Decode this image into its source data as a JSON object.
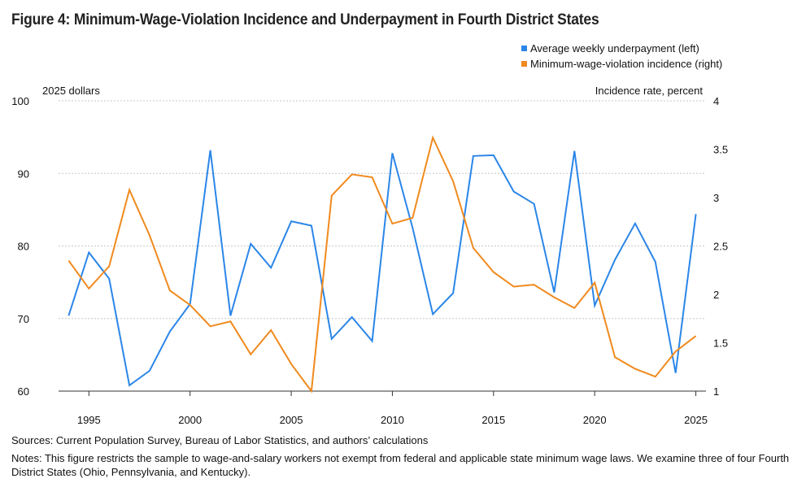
{
  "title": "Figure 4: Minimum-Wage-Violation Incidence and Underpayment in Fourth District States",
  "legend": [
    {
      "label": "Average weekly underpayment (left)",
      "color": "#2b86e8"
    },
    {
      "label": "Minimum-wage-violation incidence (right)",
      "color": "#f08a1e"
    }
  ],
  "left_axis_unit": "2025 dollars",
  "right_axis_unit": "Incidence rate, percent",
  "sources": "Sources: Current Population Survey, Bureau of Labor Statistics, and authors’ calculations",
  "notes": "Notes: This figure restricts the sample to wage-and-salary workers not exempt from federal and applicable state minimum wage laws. We examine three of four Fourth District States (Ohio, Pennsylvania, and Kentucky).",
  "chart_data": {
    "type": "line",
    "x": [
      1994,
      1995,
      1996,
      1997,
      1998,
      1999,
      2000,
      2001,
      2002,
      2003,
      2004,
      2005,
      2006,
      2007,
      2008,
      2009,
      2010,
      2011,
      2012,
      2013,
      2014,
      2015,
      2016,
      2017,
      2018,
      2019,
      2020,
      2021,
      2022,
      2023,
      2024,
      2025
    ],
    "xlim": [
      1993.5,
      2025.5
    ],
    "x_ticks": [
      "1995",
      "2000",
      "2005",
      "2010",
      "2015",
      "2020",
      "2025"
    ],
    "y_left": {
      "label": "2025 dollars",
      "lim": [
        60,
        100
      ],
      "ticks": [
        "60",
        "70",
        "80",
        "90",
        "100"
      ]
    },
    "y_right": {
      "label": "Incidence rate, percent",
      "lim": [
        1,
        4
      ],
      "ticks": [
        "1",
        "1.5",
        "2",
        "2.5",
        "3",
        "3.5",
        "4"
      ]
    },
    "grid": true,
    "legend_position": "top-right",
    "series": [
      {
        "name": "Average weekly underpayment (left)",
        "axis": "left",
        "color": "#2b86e8",
        "values": [
          70.4,
          79.1,
          75.5,
          60.8,
          62.8,
          68.2,
          72.0,
          93.2,
          70.4,
          80.3,
          77.0,
          83.4,
          82.8,
          67.2,
          70.2,
          66.9,
          92.8,
          82.5,
          70.6,
          73.5,
          92.4,
          92.5,
          87.5,
          85.8,
          73.6,
          93.1,
          71.8,
          78.1,
          83.1,
          77.8,
          62.5,
          84.4
        ]
      },
      {
        "name": "Minimum-wage-violation incidence (right)",
        "axis": "right",
        "color": "#f08a1e",
        "values": [
          2.35,
          2.06,
          2.29,
          3.08,
          2.61,
          2.04,
          1.89,
          1.67,
          1.72,
          1.38,
          1.63,
          1.28,
          1.0,
          3.02,
          3.24,
          3.21,
          2.73,
          2.79,
          3.62,
          3.17,
          2.48,
          2.23,
          2.08,
          2.1,
          1.97,
          1.86,
          2.12,
          1.35,
          1.23,
          1.15,
          1.41,
          1.57
        ]
      }
    ]
  }
}
